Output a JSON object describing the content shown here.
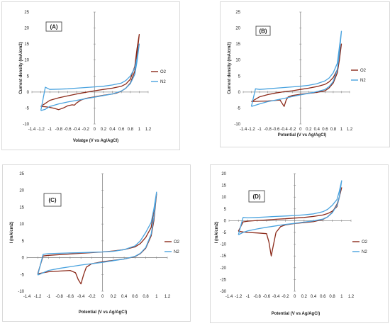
{
  "chart_data": [
    {
      "type": "line",
      "panel_label": "(A)",
      "xlabel": "Volatge (V vs Ag/AgCl)",
      "ylabel": "Current density (mA/cm2)",
      "xlim": [
        -1.4,
        1.2
      ],
      "ylim": [
        -10,
        25
      ],
      "xticks": [
        "-1.4",
        "-1.2",
        "-1",
        "-0.8",
        "-0.6",
        "-0.4",
        "-0.2",
        "0",
        "0.2",
        "0.4",
        "0.6",
        "0.8",
        "1",
        "1.2"
      ],
      "yticks": [
        "-10",
        "-5",
        "0",
        "5",
        "10",
        "15",
        "20",
        "25"
      ],
      "series": [
        {
          "name": "O2",
          "color": "#8b2a1a",
          "x": [
            -1.2,
            -1.1,
            -1.0,
            -0.9,
            -0.8,
            -0.7,
            -0.6,
            -0.5,
            -0.45,
            -0.4,
            -0.3,
            -0.2,
            0.0,
            0.2,
            0.4,
            0.5,
            0.6,
            0.7,
            0.8,
            0.9,
            0.95,
            1.0,
            0.95,
            0.9,
            0.8,
            0.7,
            0.6,
            0.4,
            0.2,
            0.0,
            -0.2,
            -0.4,
            -0.6,
            -0.8,
            -1.0,
            -1.2
          ],
          "y": [
            -4.5,
            -4.6,
            -4.8,
            -5.1,
            -5.5,
            -5.0,
            -4.3,
            -4.0,
            -4.1,
            -3.4,
            -2.5,
            -2.0,
            -1.5,
            -1.0,
            -0.6,
            -0.3,
            0.3,
            1.2,
            2.8,
            6.5,
            11.5,
            18,
            13.5,
            8,
            4,
            2.5,
            1.8,
            1.2,
            0.8,
            0.4,
            -0.1,
            -0.6,
            -1.2,
            -1.8,
            -2.6,
            -4.5
          ]
        },
        {
          "name": "N2",
          "color": "#4aa3df",
          "x": [
            -1.2,
            -1.1,
            -1.0,
            -0.8,
            -0.6,
            -0.4,
            -0.2,
            0.0,
            0.2,
            0.4,
            0.6,
            0.7,
            0.8,
            0.9,
            0.95,
            1.0,
            0.95,
            0.9,
            0.8,
            0.7,
            0.6,
            0.4,
            0.2,
            0.0,
            -0.2,
            -0.4,
            -0.6,
            -0.8,
            -1.0,
            -1.1,
            -1.2
          ],
          "y": [
            -5.8,
            -5.4,
            -4.5,
            -3.7,
            -3.1,
            -2.6,
            -2.1,
            -1.6,
            -1.1,
            -0.6,
            0.3,
            1.2,
            2.6,
            5.5,
            9.5,
            15,
            10.5,
            7.5,
            5,
            3.6,
            2.8,
            2.2,
            1.8,
            1.6,
            1.4,
            1.2,
            1.0,
            0.9,
            0.8,
            1.5,
            -5.8
          ]
        }
      ]
    },
    {
      "type": "line",
      "panel_label": "(B)",
      "xlabel": "Potential (V vs Ag/AgCl)",
      "ylabel": "Current density (mA/cm2)",
      "xlim": [
        -1.4,
        1.2
      ],
      "ylim": [
        -10,
        25
      ],
      "xticks": [
        "-1.4",
        "-1.2",
        "-1",
        "-0.8",
        "-0.6",
        "-0.4",
        "-0.2",
        "0",
        "0.2",
        "0.4",
        "0.6",
        "0.8",
        "1",
        "1.2"
      ],
      "yticks": [
        "-10",
        "-5",
        "0",
        "5",
        "10",
        "15",
        "20",
        "25"
      ],
      "series": [
        {
          "name": "O2",
          "color": "#8b2a1a",
          "x": [
            -1.2,
            -1.0,
            -0.8,
            -0.6,
            -0.5,
            -0.45,
            -0.4,
            -0.35,
            -0.3,
            -0.2,
            0.0,
            0.2,
            0.4,
            0.6,
            0.7,
            0.8,
            0.9,
            0.95,
            1.0,
            0.95,
            0.9,
            0.8,
            0.7,
            0.6,
            0.4,
            0.2,
            0.0,
            -0.2,
            -0.4,
            -0.6,
            -0.8,
            -1.0,
            -1.2
          ],
          "y": [
            -3.0,
            -2.9,
            -2.8,
            -2.6,
            -2.5,
            -3.5,
            -4.5,
            -2.5,
            -1.5,
            -1.1,
            -0.7,
            -0.4,
            -0.1,
            0.4,
            1.3,
            2.8,
            6,
            10,
            15,
            11,
            7,
            4.5,
            3.2,
            2.4,
            1.7,
            1.2,
            0.8,
            0.4,
            0.1,
            -0.3,
            -0.8,
            -1.5,
            -3.0
          ]
        },
        {
          "name": "N2",
          "color": "#4aa3df",
          "x": [
            -1.2,
            -1.0,
            -0.8,
            -0.6,
            -0.4,
            -0.2,
            0.0,
            0.2,
            0.4,
            0.6,
            0.7,
            0.8,
            0.9,
            0.95,
            1.0,
            0.95,
            0.9,
            0.8,
            0.7,
            0.6,
            0.4,
            0.2,
            0.0,
            -0.2,
            -0.4,
            -0.6,
            -0.8,
            -1.0,
            -1.1,
            -1.2
          ],
          "y": [
            -4.5,
            -3.7,
            -3.0,
            -2.5,
            -2.0,
            -1.4,
            -0.9,
            -0.4,
            0.1,
            0.8,
            1.7,
            3.3,
            7,
            12,
            19,
            14,
            9,
            6,
            4.4,
            3.5,
            2.6,
            2.1,
            1.8,
            1.6,
            1.4,
            1.2,
            1.0,
            0.8,
            1.0,
            -4.5
          ]
        }
      ]
    },
    {
      "type": "line",
      "panel_label": "(C)",
      "xlabel": "Potential (V vs Ag/AgCl)",
      "ylabel": "I (mA/cm2)",
      "xlim": [
        -1.4,
        1.2
      ],
      "ylim": [
        -10,
        25
      ],
      "xticks": [
        "-1.4",
        "-1.2",
        "-1",
        "-0.8",
        "-0.6",
        "-0.4",
        "-0.2",
        "0",
        "0.2",
        "0.4",
        "0.6",
        "0.8",
        "1",
        "1.2"
      ],
      "yticks": [
        "-10",
        "-5",
        "0",
        "5",
        "10",
        "15",
        "20",
        "25"
      ],
      "series": [
        {
          "name": "O2",
          "color": "#8b2a1a",
          "x": [
            -1.2,
            -1.1,
            -1.0,
            -0.8,
            -0.6,
            -0.5,
            -0.45,
            -0.4,
            -0.35,
            -0.3,
            -0.2,
            0.0,
            0.2,
            0.4,
            0.6,
            0.7,
            0.8,
            0.9,
            0.95,
            1.0,
            0.95,
            0.9,
            0.8,
            0.7,
            0.6,
            0.4,
            0.2,
            0.0,
            -0.2,
            -0.4,
            -0.6,
            -0.8,
            -1.0,
            -1.1,
            -1.2
          ],
          "y": [
            -4.8,
            -4.5,
            -4.2,
            -4.0,
            -3.8,
            -4.5,
            -6.5,
            -7.8,
            -5,
            -2.8,
            -1.8,
            -1.2,
            -0.8,
            -0.4,
            0.3,
            1.2,
            2.8,
            6.5,
            11,
            19,
            14,
            9,
            6,
            4.2,
            3.2,
            2.4,
            2.0,
            1.7,
            1.5,
            1.3,
            1.1,
            0.9,
            0.7,
            0.5,
            -4.8
          ]
        },
        {
          "name": "N2",
          "color": "#4aa3df",
          "x": [
            -1.2,
            -1.1,
            -1.0,
            -0.8,
            -0.6,
            -0.4,
            -0.2,
            0.0,
            0.2,
            0.4,
            0.6,
            0.7,
            0.8,
            0.9,
            0.95,
            1.0,
            0.95,
            0.9,
            0.8,
            0.7,
            0.6,
            0.4,
            0.2,
            0.0,
            -0.2,
            -0.4,
            -0.6,
            -0.8,
            -1.0,
            -1.1,
            -1.2
          ],
          "y": [
            -5.2,
            -4.5,
            -3.8,
            -3.2,
            -2.7,
            -2.2,
            -1.8,
            -1.4,
            -0.9,
            -0.4,
            0.4,
            1.3,
            3,
            7,
            12,
            19.5,
            14.5,
            10.5,
            7.5,
            5,
            3.5,
            2.4,
            1.9,
            1.7,
            1.6,
            1.5,
            1.4,
            1.3,
            1.2,
            1.0,
            -5.2
          ]
        }
      ]
    },
    {
      "type": "line",
      "panel_label": "(D)",
      "xlabel": "Potential (V vs Ag/AgCl)",
      "ylabel": "I (mA/cm2)",
      "xlim": [
        -1.4,
        1.2
      ],
      "ylim": [
        -30,
        20
      ],
      "xticks": [
        "-1.4",
        "-1.2",
        "-1",
        "-0.8",
        "-0.6",
        "-0.4",
        "-0.2",
        "0",
        "0.2",
        "0.4",
        "0.6",
        "0.8",
        "1",
        "1.2"
      ],
      "yticks": [
        "-30",
        "-25",
        "-20",
        "-15",
        "-10",
        "-5",
        "0",
        "5",
        "10",
        "15",
        "20"
      ],
      "series": [
        {
          "name": "O2",
          "color": "#8b2a1a",
          "x": [
            -1.2,
            -1.1,
            -1.0,
            -0.8,
            -0.6,
            -0.55,
            -0.5,
            -0.45,
            -0.4,
            -0.3,
            -0.2,
            0.0,
            0.2,
            0.4,
            0.6,
            0.7,
            0.8,
            0.9,
            0.95,
            1.0,
            0.95,
            0.9,
            0.8,
            0.7,
            0.6,
            0.4,
            0.2,
            0.0,
            -0.2,
            -0.4,
            -0.6,
            -0.8,
            -1.0,
            -1.1,
            -1.2
          ],
          "y": [
            -4.5,
            -4.8,
            -5.0,
            -5.2,
            -5.5,
            -9,
            -15,
            -10,
            -5,
            -2.5,
            -1.8,
            -1.2,
            -0.8,
            -0.4,
            0.5,
            1.6,
            3.5,
            7,
            10,
            14,
            10,
            6,
            4,
            3,
            2.4,
            1.8,
            1.4,
            1.1,
            0.8,
            0.6,
            0.3,
            0.1,
            -0.2,
            -0.5,
            -4.5
          ]
        },
        {
          "name": "N2",
          "color": "#4aa3df",
          "x": [
            -1.2,
            -1.1,
            -1.0,
            -0.8,
            -0.6,
            -0.4,
            -0.2,
            0.0,
            0.2,
            0.4,
            0.6,
            0.7,
            0.8,
            0.9,
            0.95,
            1.0,
            0.95,
            0.9,
            0.8,
            0.7,
            0.6,
            0.4,
            0.2,
            0.0,
            -0.2,
            -0.4,
            -0.6,
            -0.8,
            -1.0,
            -1.1,
            -1.2
          ],
          "y": [
            -6.0,
            -5.0,
            -4.3,
            -3.5,
            -2.8,
            -2.2,
            -1.6,
            -1.1,
            -0.6,
            -0.1,
            0.7,
            1.6,
            3.3,
            6.5,
            10,
            17,
            12.5,
            9,
            6.5,
            4.8,
            3.8,
            2.9,
            2.5,
            2.2,
            2.0,
            1.8,
            1.6,
            1.4,
            1.2,
            1.4,
            -6.0
          ]
        }
      ]
    }
  ]
}
